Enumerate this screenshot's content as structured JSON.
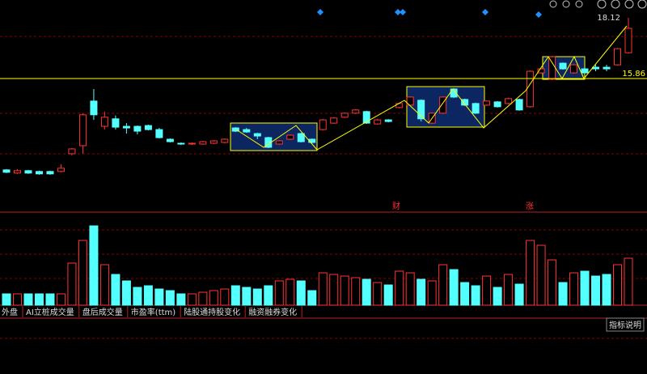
{
  "price_panel": {
    "high_label": 18.12,
    "line_price": 15.86,
    "candles": [
      [
        12.46,
        12.37,
        12.49,
        12.34
      ],
      [
        12.34,
        12.43,
        12.49,
        12.31
      ],
      [
        12.43,
        12.34,
        12.46,
        12.31
      ],
      [
        12.4,
        12.31,
        12.43,
        12.28
      ],
      [
        12.4,
        12.31,
        12.43,
        12.28
      ],
      [
        12.4,
        12.52,
        12.67,
        12.37
      ],
      [
        13.06,
        13.24,
        13.27,
        13.0
      ],
      [
        13.36,
        14.51,
        14.57,
        13.06
      ],
      [
        15.02,
        14.51,
        15.47,
        14.32
      ],
      [
        14.08,
        14.42,
        14.63,
        13.96
      ],
      [
        14.36,
        14.05,
        14.48,
        13.96
      ],
      [
        14.08,
        14.02,
        14.2,
        13.81
      ],
      [
        14.08,
        13.9,
        14.11,
        13.78
      ],
      [
        14.11,
        13.96,
        14.14,
        13.93
      ],
      [
        13.96,
        13.66,
        14.02,
        13.63
      ],
      [
        13.6,
        13.51,
        13.63,
        13.48
      ],
      [
        13.45,
        13.42,
        13.48,
        13.39
      ],
      [
        13.42,
        13.45,
        13.48,
        13.39
      ],
      [
        13.42,
        13.51,
        13.54,
        13.39
      ],
      [
        13.45,
        13.54,
        13.57,
        13.42
      ],
      [
        13.48,
        13.6,
        13.63,
        13.45
      ],
      [
        14.02,
        13.9,
        14.05,
        13.87
      ],
      [
        13.96,
        13.87,
        14.02,
        13.84
      ],
      [
        13.81,
        13.72,
        13.84,
        13.6
      ],
      [
        13.66,
        13.3,
        13.69,
        13.27
      ],
      [
        13.42,
        13.54,
        13.57,
        13.39
      ],
      [
        13.6,
        13.75,
        13.78,
        13.57
      ],
      [
        13.81,
        13.51,
        13.84,
        13.48
      ],
      [
        13.6,
        13.48,
        13.63,
        13.45
      ],
      [
        13.96,
        14.32,
        14.36,
        13.93
      ],
      [
        14.2,
        14.39,
        14.42,
        14.17
      ],
      [
        14.42,
        14.57,
        14.6,
        14.39
      ],
      [
        14.57,
        14.69,
        14.72,
        14.54
      ],
      [
        14.63,
        14.2,
        14.66,
        14.17
      ],
      [
        14.17,
        14.32,
        14.36,
        14.14
      ],
      [
        14.32,
        14.26,
        14.35,
        14.23
      ],
      [
        14.78,
        14.93,
        14.96,
        14.75
      ],
      [
        14.87,
        15.17,
        15.2,
        14.84
      ],
      [
        15.05,
        14.36,
        15.08,
        14.26
      ],
      [
        14.2,
        14.57,
        14.6,
        14.17
      ],
      [
        14.57,
        15.17,
        15.2,
        14.54
      ],
      [
        15.47,
        15.17,
        15.5,
        15.14
      ],
      [
        15.08,
        14.87,
        15.11,
        14.84
      ],
      [
        14.93,
        14.57,
        14.96,
        14.54
      ],
      [
        14.87,
        15.02,
        15.05,
        14.84
      ],
      [
        14.99,
        14.81,
        15.02,
        14.78
      ],
      [
        14.93,
        15.11,
        15.14,
        14.9
      ],
      [
        15.08,
        14.69,
        15.11,
        14.66
      ],
      [
        14.81,
        16.13,
        16.16,
        14.78
      ],
      [
        16.07,
        16.22,
        16.25,
        16.04
      ],
      [
        15.83,
        16.67,
        16.7,
        15.8
      ],
      [
        16.43,
        16.22,
        16.46,
        16.19
      ],
      [
        16.07,
        16.37,
        16.4,
        16.04
      ],
      [
        16.22,
        16.07,
        16.25,
        16.04
      ],
      [
        16.28,
        16.22,
        16.37,
        16.13
      ],
      [
        16.28,
        16.22,
        16.37,
        16.13
      ],
      [
        16.37,
        16.97,
        17.0,
        16.34
      ],
      [
        16.82,
        17.73,
        18.12,
        16.79
      ]
    ],
    "markers": [
      "财",
      "涨"
    ]
  },
  "volume_panel": {
    "volumes": [
      14,
      14,
      14,
      14,
      14,
      14,
      52,
      80,
      98,
      50,
      38,
      30,
      22,
      24,
      20,
      18,
      14,
      14,
      16,
      18,
      20,
      24,
      22,
      20,
      24,
      30,
      32,
      30,
      18,
      40,
      38,
      36,
      34,
      32,
      28,
      25,
      42,
      40,
      32,
      30,
      50,
      44,
      28,
      24,
      36,
      22,
      38,
      26,
      80,
      74,
      56,
      28,
      40,
      42,
      36,
      38,
      50,
      58
    ],
    "vmax": 100
  },
  "tabs": [
    "外盘",
    "AI立桩成交量",
    "盘后成交量",
    "市盈率(ttm)",
    "陆股通持股变化",
    "融资融券变化"
  ],
  "help_button": "指标说明"
}
